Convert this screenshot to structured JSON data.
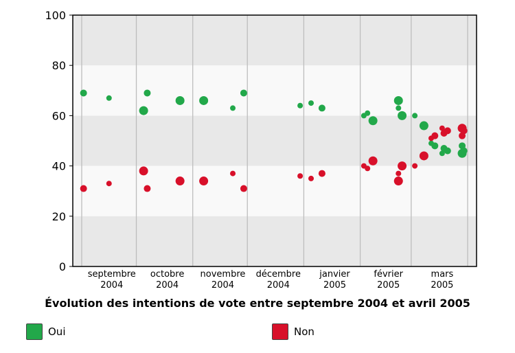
{
  "chart_data": {
    "type": "scatter",
    "title": "Évolution des intentions de vote entre septembre 2004 et avril 2005",
    "xlabel": "",
    "ylabel": "",
    "ylim": [
      0,
      100
    ],
    "y_ticks": [
      0,
      20,
      40,
      60,
      80,
      100
    ],
    "x_range": [
      "2004-09-01",
      "2005-04-01"
    ],
    "months": [
      {
        "label": [
          "septembre",
          "2004"
        ],
        "start": "2004-09-01"
      },
      {
        "label": [
          "octobre",
          "2004"
        ],
        "start": "2004-10-01"
      },
      {
        "label": [
          "novembre",
          "2004"
        ],
        "start": "2004-11-01"
      },
      {
        "label": [
          "décembre",
          "2004"
        ],
        "start": "2004-12-01"
      },
      {
        "label": [
          "janvier",
          "2005"
        ],
        "start": "2005-01-01"
      },
      {
        "label": [
          "février",
          "2005"
        ],
        "start": "2005-02-01"
      },
      {
        "label": [
          "mars",
          "2005"
        ],
        "start": "2005-03-01"
      }
    ],
    "grid": "horizontal bands",
    "legend_position": "bottom",
    "series": [
      {
        "name": "Oui",
        "color": "#22a84a",
        "points": [
          {
            "x": "2004-09-02",
            "y": 69,
            "size": "medium"
          },
          {
            "x": "2004-09-16",
            "y": 67,
            "size": "small"
          },
          {
            "x": "2004-10-05",
            "y": 62,
            "size": "large"
          },
          {
            "x": "2004-10-07",
            "y": 69,
            "size": "medium"
          },
          {
            "x": "2004-10-25",
            "y": 66,
            "size": "large"
          },
          {
            "x": "2004-11-07",
            "y": 66,
            "size": "large"
          },
          {
            "x": "2004-11-23",
            "y": 63,
            "size": "small"
          },
          {
            "x": "2004-11-29",
            "y": 69,
            "size": "medium"
          },
          {
            "x": "2004-12-30",
            "y": 64,
            "size": "small"
          },
          {
            "x": "2005-01-05",
            "y": 65,
            "size": "small"
          },
          {
            "x": "2005-01-11",
            "y": 63,
            "size": "medium"
          },
          {
            "x": "2005-02-03",
            "y": 60,
            "size": "small"
          },
          {
            "x": "2005-02-05",
            "y": 61,
            "size": "small"
          },
          {
            "x": "2005-02-08",
            "y": 58,
            "size": "large"
          },
          {
            "x": "2005-02-22",
            "y": 66,
            "size": "large"
          },
          {
            "x": "2005-02-22",
            "y": 63,
            "size": "small"
          },
          {
            "x": "2005-02-24",
            "y": 60,
            "size": "large"
          },
          {
            "x": "2005-03-03",
            "y": 60,
            "size": "small"
          },
          {
            "x": "2005-03-08",
            "y": 56,
            "size": "large"
          },
          {
            "x": "2005-03-12",
            "y": 49,
            "size": "small"
          },
          {
            "x": "2005-03-14",
            "y": 48,
            "size": "medium"
          },
          {
            "x": "2005-03-18",
            "y": 45,
            "size": "small"
          },
          {
            "x": "2005-03-19",
            "y": 47,
            "size": "medium"
          },
          {
            "x": "2005-03-21",
            "y": 46,
            "size": "medium"
          },
          {
            "x": "2005-03-29",
            "y": 48,
            "size": "medium"
          },
          {
            "x": "2005-03-29",
            "y": 45,
            "size": "large"
          },
          {
            "x": "2005-03-30",
            "y": 46,
            "size": "medium"
          }
        ]
      },
      {
        "name": "Non",
        "color": "#d8102a",
        "points": [
          {
            "x": "2004-09-02",
            "y": 31,
            "size": "medium"
          },
          {
            "x": "2004-09-16",
            "y": 33,
            "size": "small"
          },
          {
            "x": "2004-10-05",
            "y": 38,
            "size": "large"
          },
          {
            "x": "2004-10-07",
            "y": 31,
            "size": "medium"
          },
          {
            "x": "2004-10-25",
            "y": 34,
            "size": "large"
          },
          {
            "x": "2004-11-07",
            "y": 34,
            "size": "large"
          },
          {
            "x": "2004-11-23",
            "y": 37,
            "size": "small"
          },
          {
            "x": "2004-11-29",
            "y": 31,
            "size": "medium"
          },
          {
            "x": "2004-12-30",
            "y": 36,
            "size": "small"
          },
          {
            "x": "2005-01-05",
            "y": 35,
            "size": "small"
          },
          {
            "x": "2005-01-11",
            "y": 37,
            "size": "medium"
          },
          {
            "x": "2005-02-03",
            "y": 40,
            "size": "small"
          },
          {
            "x": "2005-02-05",
            "y": 39,
            "size": "small"
          },
          {
            "x": "2005-02-08",
            "y": 42,
            "size": "large"
          },
          {
            "x": "2005-02-22",
            "y": 34,
            "size": "large"
          },
          {
            "x": "2005-02-22",
            "y": 37,
            "size": "small"
          },
          {
            "x": "2005-02-24",
            "y": 40,
            "size": "large"
          },
          {
            "x": "2005-03-03",
            "y": 40,
            "size": "small"
          },
          {
            "x": "2005-03-08",
            "y": 44,
            "size": "large"
          },
          {
            "x": "2005-03-12",
            "y": 51,
            "size": "small"
          },
          {
            "x": "2005-03-14",
            "y": 52,
            "size": "medium"
          },
          {
            "x": "2005-03-18",
            "y": 55,
            "size": "small"
          },
          {
            "x": "2005-03-19",
            "y": 53,
            "size": "medium"
          },
          {
            "x": "2005-03-21",
            "y": 54,
            "size": "medium"
          },
          {
            "x": "2005-03-29",
            "y": 55,
            "size": "large"
          },
          {
            "x": "2005-03-29",
            "y": 52,
            "size": "medium"
          },
          {
            "x": "2005-03-30",
            "y": 54,
            "size": "medium"
          }
        ]
      }
    ]
  },
  "legend": {
    "oui_label": "Oui",
    "non_label": "Non",
    "oui_color": "#22a84a",
    "non_color": "#d8102a"
  }
}
